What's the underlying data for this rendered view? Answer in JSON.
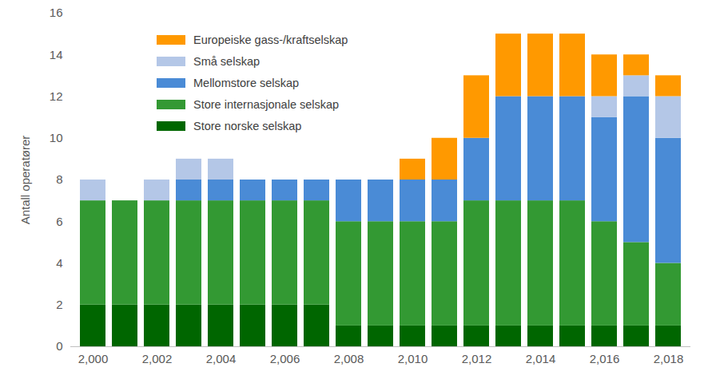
{
  "chart_data": {
    "type": "bar",
    "stacked": true,
    "y_label": "Antall operatører",
    "categories": [
      2000,
      null,
      2002,
      null,
      2004,
      null,
      2006,
      null,
      2008,
      null,
      2010,
      null,
      2012,
      null,
      2014,
      null,
      2016,
      null,
      2018
    ],
    "series": [
      {
        "name": "Europeiske gass-/kraftselskap",
        "color": "#ff9900",
        "values": [
          0,
          0,
          0,
          0,
          0,
          0,
          0,
          0,
          0,
          0,
          1,
          2,
          3,
          3,
          3,
          3,
          2,
          1,
          1
        ]
      },
      {
        "name": "Små selskap",
        "color": "#b4c7e7",
        "values": [
          1,
          0,
          1,
          1,
          1,
          0,
          0,
          0,
          0,
          0,
          0,
          0,
          0,
          0,
          0,
          0,
          1,
          1,
          2
        ]
      },
      {
        "name": "Mellomstore selskap",
        "color": "#4a8bd6",
        "values": [
          0,
          0,
          0,
          1,
          1,
          1,
          1,
          1,
          2,
          2,
          2,
          2,
          3,
          5,
          5,
          5,
          5,
          7,
          6
        ]
      },
      {
        "name": "Store internasjonale selskap",
        "color": "#339933",
        "values": [
          5,
          5,
          5,
          5,
          5,
          5,
          5,
          5,
          5,
          5,
          5,
          5,
          6,
          6,
          6,
          6,
          5,
          4,
          3
        ]
      },
      {
        "name": "Store norske selskap",
        "color": "#006600",
        "values": [
          2,
          2,
          2,
          2,
          2,
          2,
          2,
          2,
          1,
          1,
          1,
          1,
          1,
          1,
          1,
          1,
          1,
          1,
          1
        ]
      }
    ],
    "ylim": [
      0,
      16
    ],
    "yticks": [
      0,
      2,
      4,
      6,
      8,
      10,
      12,
      14,
      16
    ],
    "legend": "top-left",
    "grid": false
  }
}
